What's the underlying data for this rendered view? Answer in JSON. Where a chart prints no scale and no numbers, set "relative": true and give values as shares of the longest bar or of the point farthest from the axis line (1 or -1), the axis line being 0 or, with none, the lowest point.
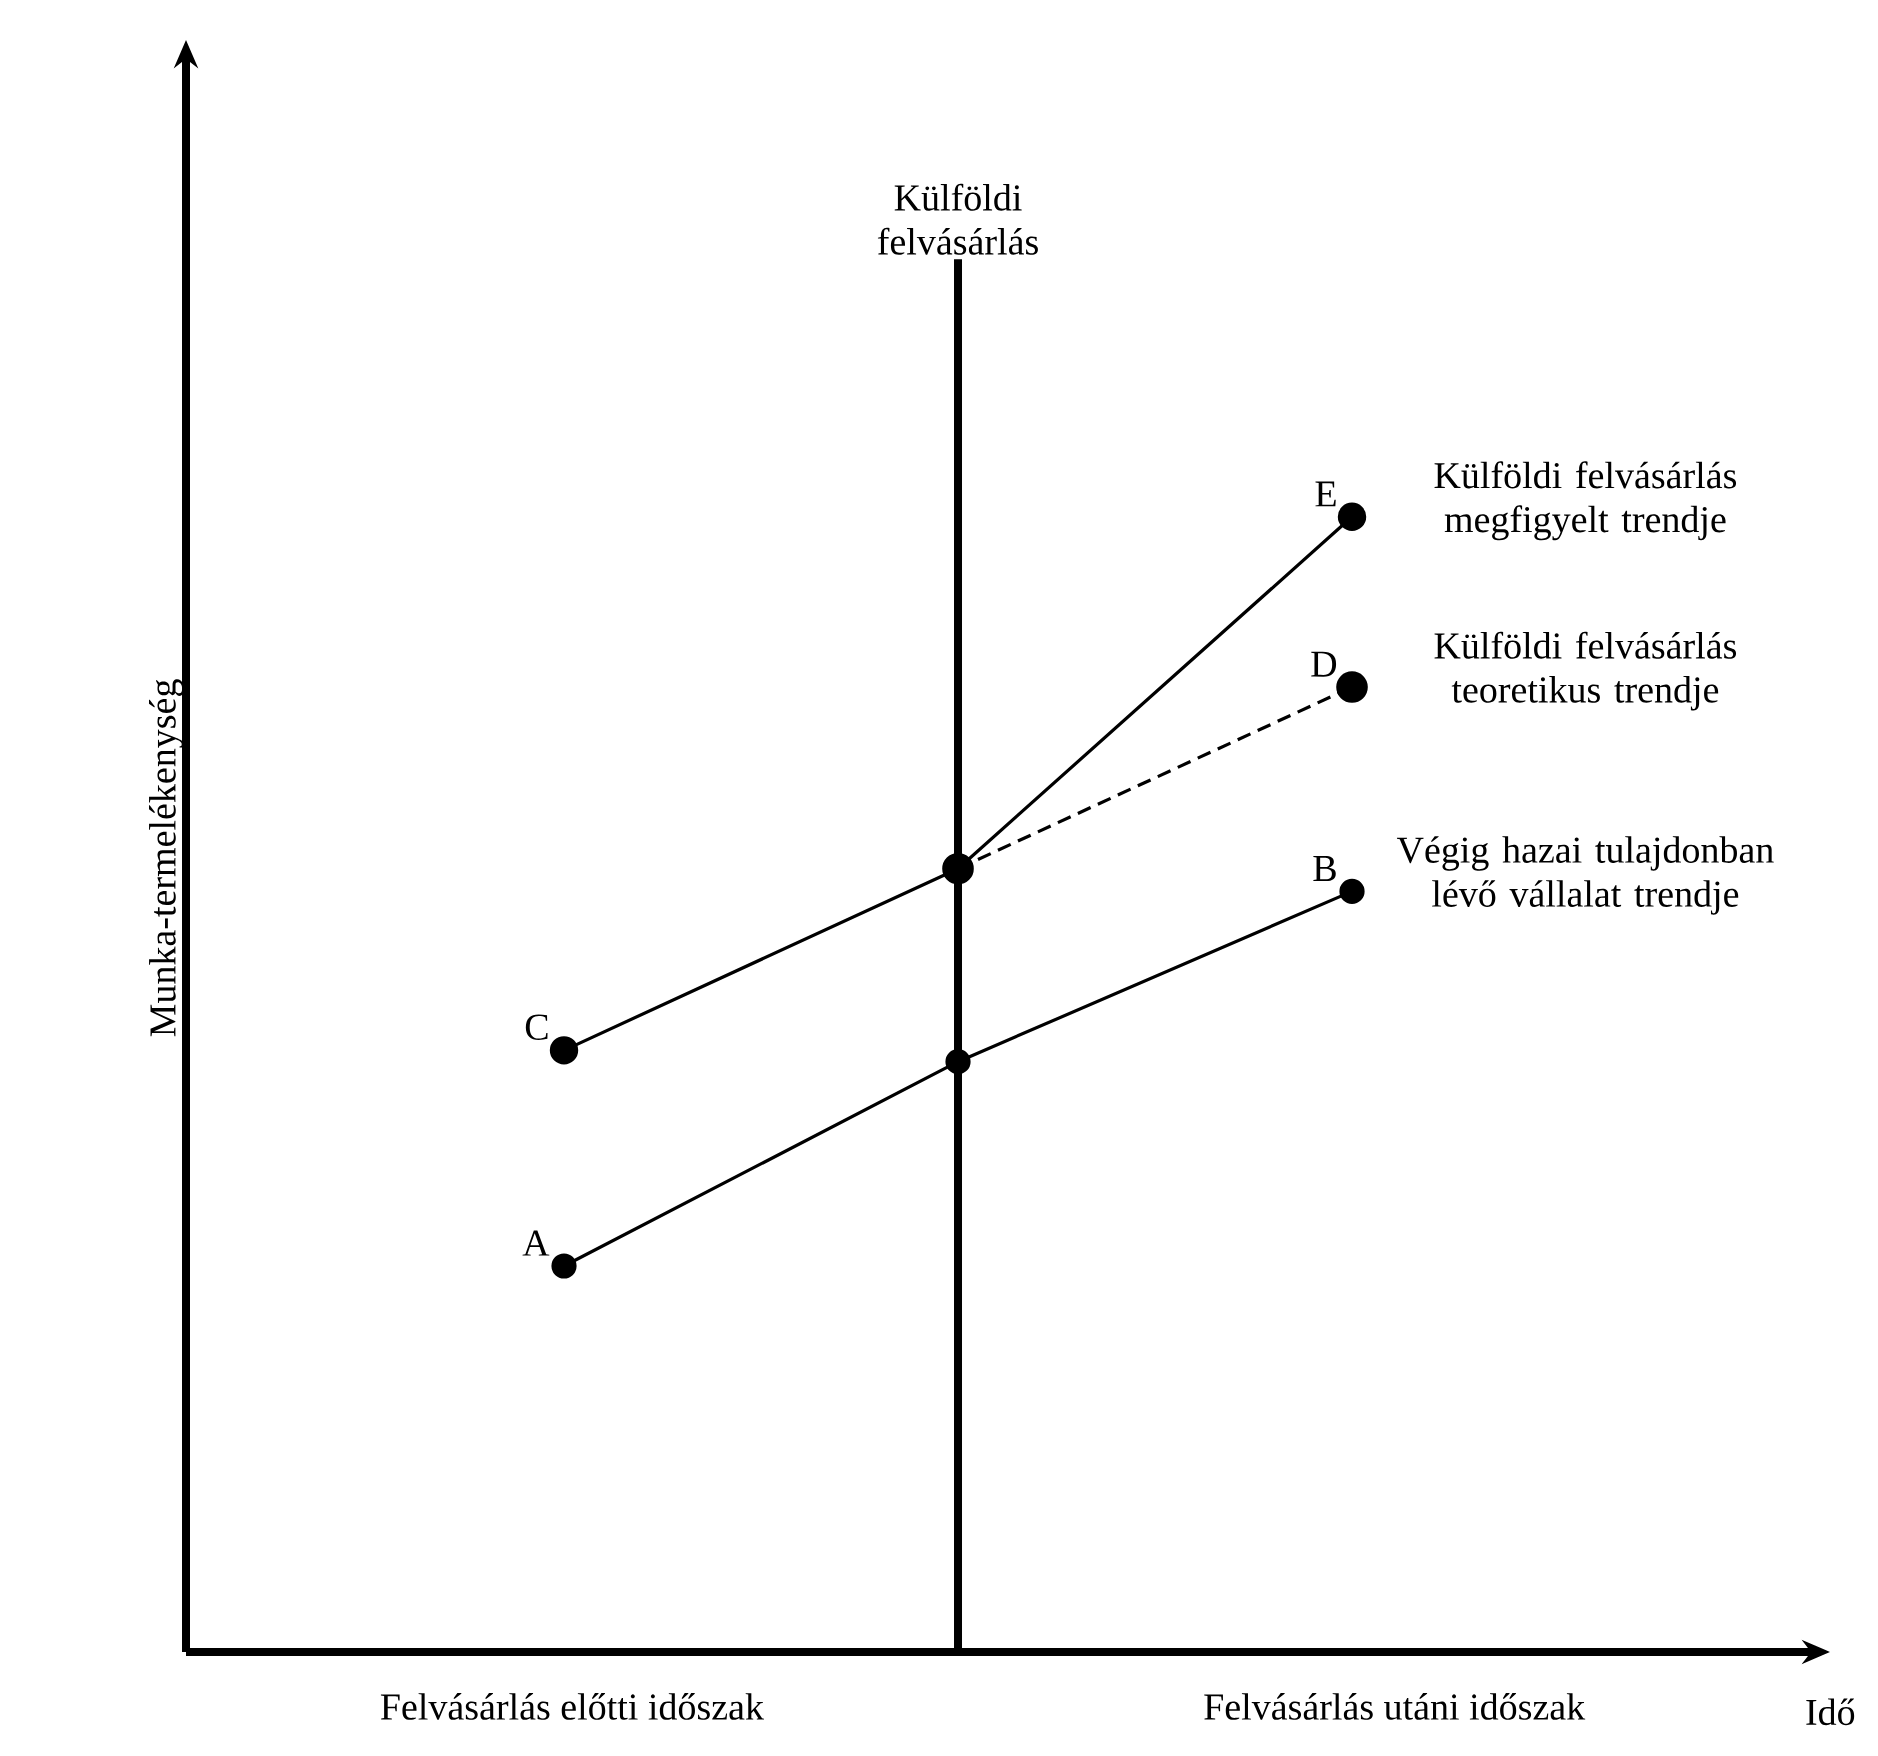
{
  "chart_data": {
    "type": "line",
    "relative": true,
    "xlabel": "Idő",
    "ylabel": "Munka-termelékenység",
    "categories": [
      null,
      null,
      null
    ],
    "series": [
      {
        "name": "Végig hazai tulajdonban lévő vállalat trendje",
        "color": "#000000",
        "values": [
          0.34,
          0.52,
          0.67
        ]
      },
      {
        "name": "Külföldi felvásárlás megfigyelt trendje",
        "color": "#000000",
        "values": [
          0.53,
          0.69,
          1
        ]
      },
      {
        "name": "Külföldi felvásárlás teoretikus trendje",
        "color": "#000000",
        "values": [
          null,
          0.69,
          0.85
        ],
        "line_style": "dashed"
      }
    ],
    "annotations": [
      "Felvásárlás előtti időszak",
      "Felvásárlás utáni időszak",
      "Külföldi felvásárlás",
      "A",
      "B",
      "C",
      "D",
      "E"
    ],
    "legend": false,
    "marker": "circle",
    "line_style": "solid"
  }
}
